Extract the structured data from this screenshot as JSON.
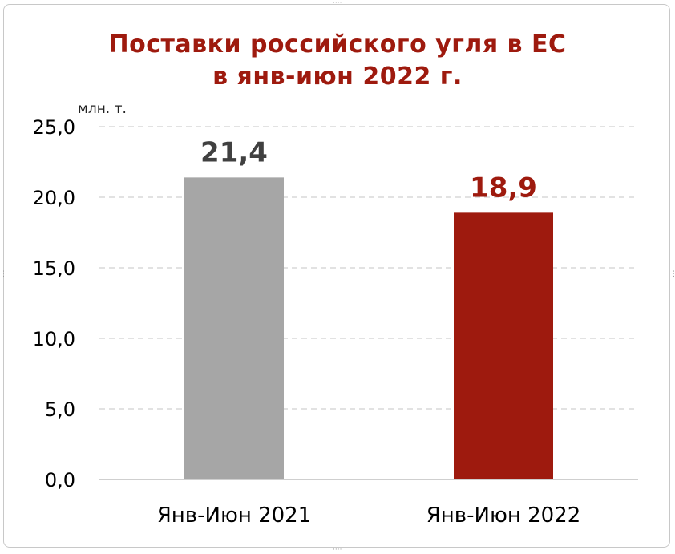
{
  "chart_data": {
    "type": "bar",
    "title": [
      "Поставки российского угля в ЕС",
      "в янв-июн 2022 г."
    ],
    "unit_label": "млн. т.",
    "categories": [
      "Янв-Июн 2021",
      "Янв-Июн 2022"
    ],
    "values": [
      21.4,
      18.9
    ],
    "value_labels": [
      "21,4",
      "18,9"
    ],
    "bar_colors": [
      "#a6a6a6",
      "#9e1a0e"
    ],
    "label_colors": [
      "#404040",
      "#9e1a0e"
    ],
    "ylim": [
      0,
      25
    ],
    "yticks": [
      0,
      5,
      10,
      15,
      20,
      25
    ],
    "ytick_labels": [
      "0,0",
      "5,0",
      "10,0",
      "15,0",
      "20,0",
      "25,0"
    ],
    "grid": true,
    "legend": "none"
  }
}
